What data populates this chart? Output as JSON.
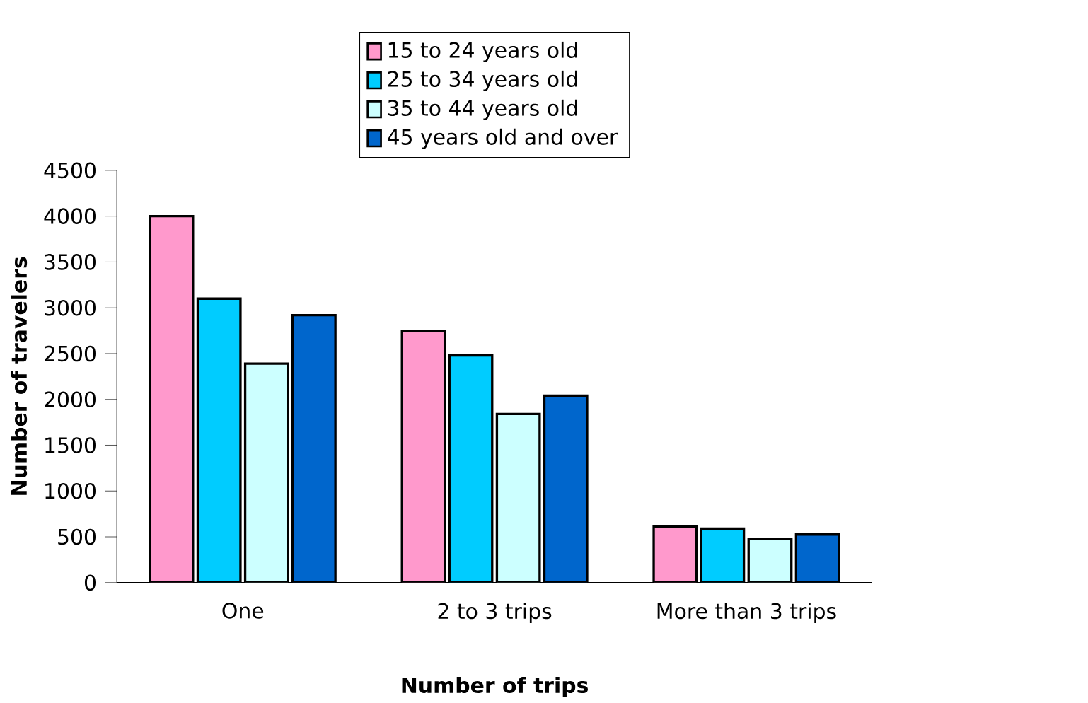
{
  "chart_data": {
    "type": "bar",
    "xlabel": "Number of trips",
    "ylabel": "Number of travelers",
    "categories": [
      "One",
      "2 to 3 trips",
      "More than 3 trips"
    ],
    "series": [
      {
        "name": "15 to 24 years old",
        "color": "#ff99cc",
        "values": [
          4000,
          2750,
          610
        ]
      },
      {
        "name": "25 to 34 years old",
        "color": "#00ccff",
        "values": [
          3100,
          2480,
          590
        ]
      },
      {
        "name": "35 to 44 years old",
        "color": "#ccffff",
        "values": [
          2390,
          1840,
          475
        ]
      },
      {
        "name": "45 years old and over",
        "color": "#0066cc",
        "values": [
          2920,
          2040,
          525
        ]
      }
    ],
    "ylim": [
      0,
      4500
    ],
    "yticks": [
      0,
      500,
      1000,
      1500,
      2000,
      2500,
      3000,
      3500,
      4000,
      4500
    ],
    "grid": false,
    "legend": "top"
  }
}
